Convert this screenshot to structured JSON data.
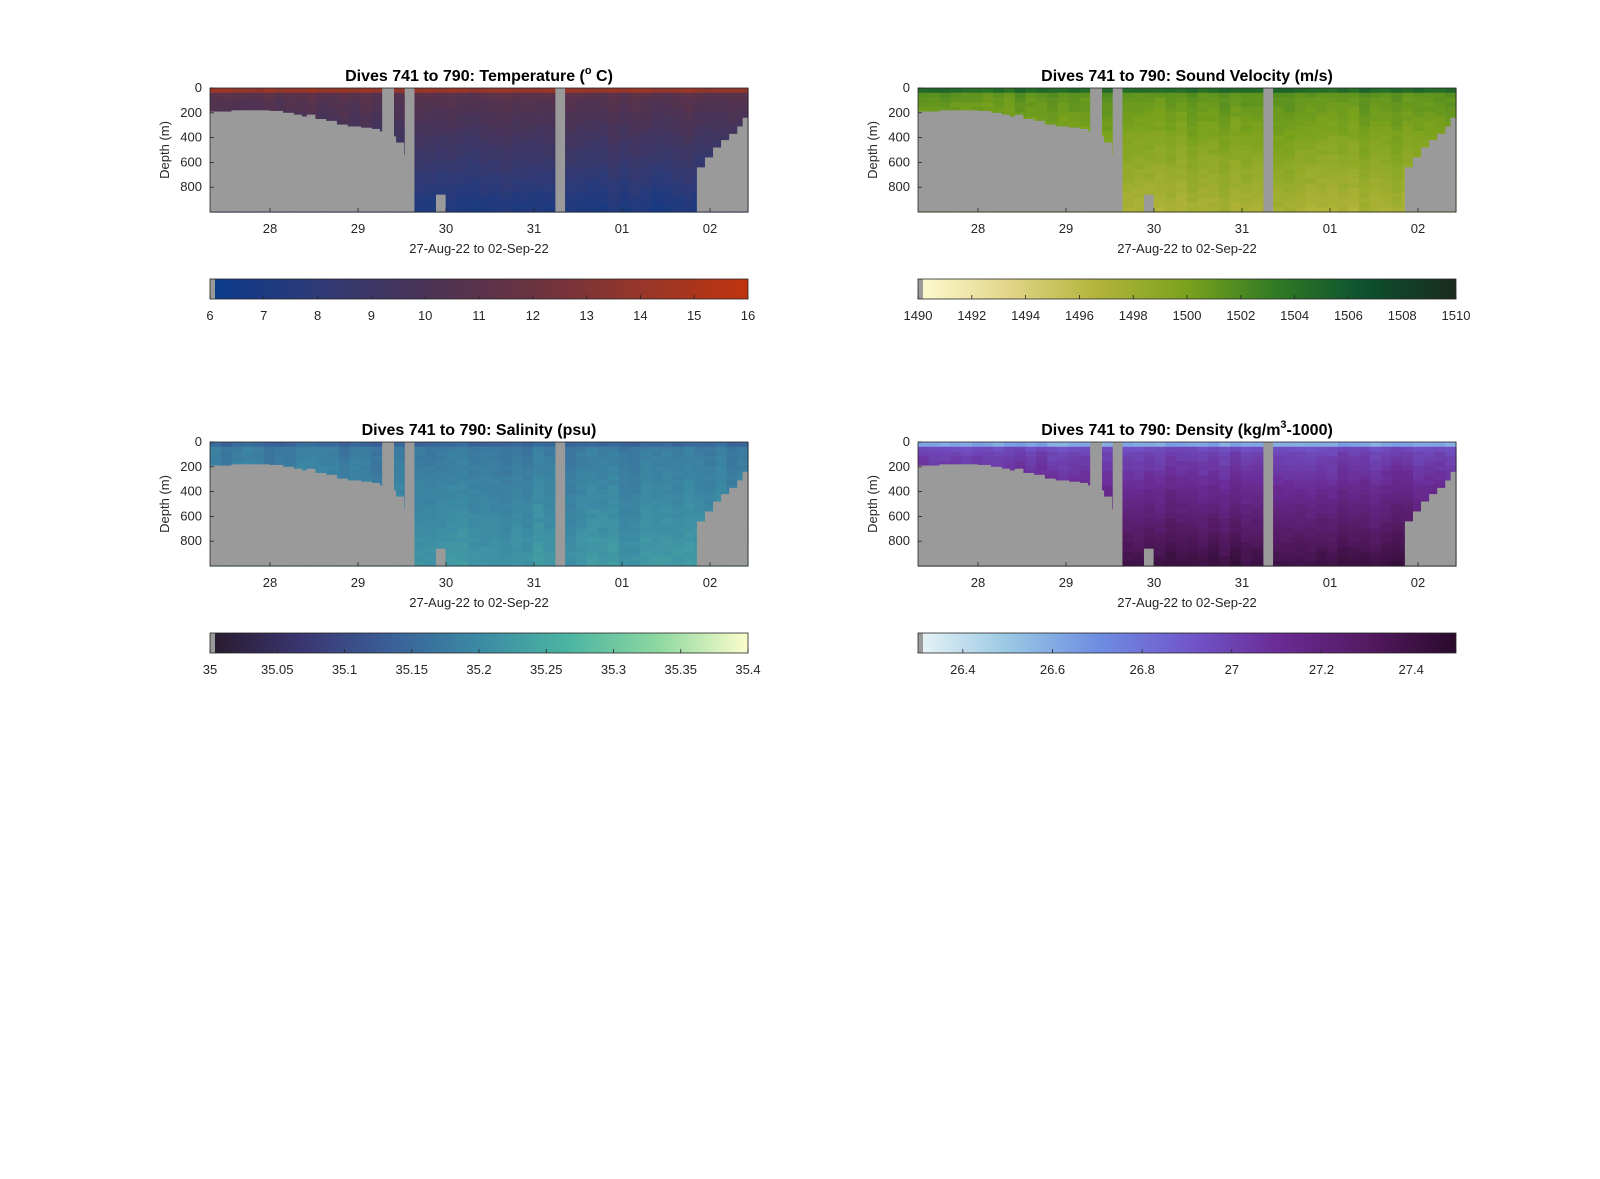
{
  "chart_data": [
    {
      "type": "heatmap",
      "variable": "temperature",
      "title_main": "Dives 741 to 790: Temperature (",
      "title_sup": "o",
      "title_end": " C)",
      "xlabel": "27-Aug-22 to 02-Sep-22",
      "ylabel": "Depth (m)",
      "x_ticks": [
        "28",
        "29",
        "30",
        "31",
        "01",
        "02"
      ],
      "y_ticks": [
        "0",
        "200",
        "400",
        "600",
        "800"
      ],
      "ylim": [
        0,
        1000
      ],
      "clim": [
        6,
        16
      ],
      "colorbar_ticks": [
        "6",
        "7",
        "8",
        "9",
        "10",
        "11",
        "12",
        "13",
        "14",
        "15",
        "16"
      ],
      "colormap": [
        "#0a3a8c",
        "#2e3a76",
        "#4a3356",
        "#6a3340",
        "#96362a",
        "#c0340e"
      ],
      "profile": {
        "surface": 15.5,
        "deep": 7.0,
        "thermocline_m": 60
      }
    },
    {
      "type": "heatmap",
      "variable": "sound_velocity",
      "title_main": "Dives 741 to 790: Sound Velocity (m/s)",
      "title_sup": "",
      "title_end": "",
      "xlabel": "27-Aug-22 to 02-Sep-22",
      "ylabel": "Depth (m)",
      "x_ticks": [
        "28",
        "29",
        "30",
        "31",
        "01",
        "02"
      ],
      "y_ticks": [
        "0",
        "200",
        "400",
        "600",
        "800"
      ],
      "ylim": [
        0,
        1000
      ],
      "clim": [
        1490,
        1510
      ],
      "colorbar_ticks": [
        "1490",
        "1492",
        "1494",
        "1496",
        "1498",
        "1500",
        "1502",
        "1504",
        "1506",
        "1508",
        "1510"
      ],
      "colormap": [
        "#fdfbd0",
        "#e3d58a",
        "#b2b43a",
        "#7aa21c",
        "#2f7a25",
        "#0d5030",
        "#1a2a1c"
      ],
      "profile": {
        "surface": 1506,
        "deep": 1497,
        "thermocline_m": 60
      }
    },
    {
      "type": "heatmap",
      "variable": "salinity",
      "title_main": "Dives 741 to 790: Salinity (psu)",
      "title_sup": "",
      "title_end": "",
      "xlabel": "27-Aug-22 to 02-Sep-22",
      "ylabel": "Depth (m)",
      "x_ticks": [
        "28",
        "29",
        "30",
        "31",
        "01",
        "02"
      ],
      "y_ticks": [
        "0",
        "200",
        "400",
        "600",
        "800"
      ],
      "ylim": [
        0,
        1000
      ],
      "clim": [
        35,
        35.4
      ],
      "colorbar_ticks": [
        "35",
        "35.05",
        "35.1",
        "35.15",
        "35.2",
        "35.25",
        "35.3",
        "35.35",
        "35.4"
      ],
      "colormap": [
        "#281a2c",
        "#3a3570",
        "#3a5f98",
        "#3b8aa4",
        "#4cb5a2",
        "#8ed8a0",
        "#fcfdcc"
      ],
      "profile": {
        "surface": 35.12,
        "deep": 35.22,
        "thermocline_m": 40
      }
    },
    {
      "type": "heatmap",
      "variable": "density",
      "title_main": "Dives 741 to 790: Density (kg/m",
      "title_sup": "3",
      "title_end": "-1000)",
      "xlabel": "27-Aug-22 to 02-Sep-22",
      "ylabel": "Depth (m)",
      "x_ticks": [
        "28",
        "29",
        "30",
        "31",
        "01",
        "02"
      ],
      "y_ticks": [
        "0",
        "200",
        "400",
        "600",
        "800"
      ],
      "ylim": [
        0,
        1000
      ],
      "clim": [
        26.3,
        27.5
      ],
      "colorbar_ticks": [
        "26.4",
        "26.6",
        "26.8",
        "27",
        "27.2",
        "27.4"
      ],
      "colormap": [
        "#e8f4f6",
        "#9ac8e4",
        "#6e8ee2",
        "#7158cc",
        "#6a2c96",
        "#541a62",
        "#2a0a2c"
      ],
      "profile": {
        "surface": 26.45,
        "deep": 27.42,
        "thermocline_m": 60
      }
    }
  ]
}
